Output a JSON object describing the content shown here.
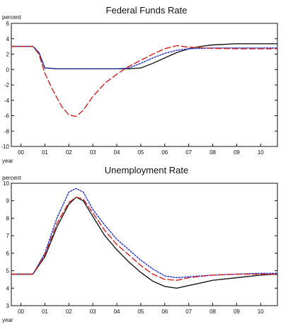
{
  "chart_data": [
    {
      "type": "line",
      "title": "Federal Funds Rate",
      "ylabel": "percent",
      "xlabel": "year",
      "ylim": [
        -10,
        6
      ],
      "yticks": [
        -10,
        -8,
        -6,
        -4,
        -2,
        0,
        2,
        4,
        6
      ],
      "xlim": [
        1999.6,
        2010.7
      ],
      "xticks": [
        2000,
        2001,
        2002,
        2003,
        2004,
        2005,
        2006,
        2007,
        2008,
        2009,
        2010
      ],
      "xticklabels": [
        "00",
        "01",
        "02",
        "03",
        "04",
        "05",
        "06",
        "07",
        "08",
        "09",
        "10"
      ],
      "grid": false,
      "series": [
        {
          "style": "solid",
          "color": "#1a1a1a",
          "x": [
            1999.6,
            2000.5,
            2000.75,
            2000.9,
            2001.0,
            2001.5,
            2002.0,
            2003.0,
            2004.0,
            2004.5,
            2005.0,
            2005.5,
            2006.0,
            2006.5,
            2007.0,
            2007.5,
            2008.0,
            2009.0,
            2010.0,
            2010.7
          ],
          "y": [
            3.0,
            3.0,
            2.2,
            1.0,
            0.2,
            0.1,
            0.1,
            0.1,
            0.1,
            0.1,
            0.2,
            0.8,
            1.5,
            2.2,
            2.7,
            3.0,
            3.2,
            3.35,
            3.35,
            3.35
          ]
        },
        {
          "style": "dotted",
          "color": "#2233cc",
          "x": [
            1999.6,
            2000.5,
            2000.75,
            2000.9,
            2001.0,
            2001.5,
            2002.0,
            2003.0,
            2004.0,
            2004.5,
            2005.0,
            2005.5,
            2006.0,
            2006.5,
            2007.0,
            2008.0,
            2009.0,
            2010.0,
            2010.7
          ],
          "y": [
            3.0,
            3.0,
            2.2,
            1.0,
            0.2,
            0.1,
            0.1,
            0.1,
            0.1,
            0.2,
            0.8,
            1.5,
            2.1,
            2.5,
            2.7,
            2.8,
            2.8,
            2.8,
            2.8
          ]
        },
        {
          "style": "dashed",
          "color": "#cc2222",
          "x": [
            1999.6,
            2000.5,
            2000.75,
            2001.0,
            2001.3,
            2001.7,
            2002.0,
            2002.3,
            2002.6,
            2003.0,
            2003.5,
            2004.0,
            2004.5,
            2005.0,
            2005.5,
            2006.0,
            2006.5,
            2007.0,
            2008.0,
            2009.0,
            2010.0,
            2010.7
          ],
          "y": [
            3.0,
            3.0,
            2.0,
            -0.5,
            -2.5,
            -4.8,
            -5.9,
            -6.1,
            -5.3,
            -3.5,
            -1.8,
            -0.6,
            0.4,
            1.2,
            2.0,
            2.7,
            3.1,
            2.9,
            2.75,
            2.7,
            2.7,
            2.7
          ]
        }
      ]
    },
    {
      "type": "line",
      "title": "Unemployment Rate",
      "ylabel": "percent",
      "xlabel": "year",
      "ylim": [
        3,
        10
      ],
      "yticks": [
        3,
        4,
        5,
        6,
        7,
        8,
        9,
        10
      ],
      "xlim": [
        1999.6,
        2010.7
      ],
      "xticks": [
        2000,
        2001,
        2002,
        2003,
        2004,
        2005,
        2006,
        2007,
        2008,
        2009,
        2010
      ],
      "xticklabels": [
        "00",
        "01",
        "02",
        "03",
        "04",
        "05",
        "06",
        "07",
        "08",
        "09",
        "10"
      ],
      "grid": false,
      "series": [
        {
          "style": "solid",
          "color": "#1a1a1a",
          "x": [
            1999.6,
            2000.5,
            2001.0,
            2001.5,
            2002.0,
            2002.3,
            2002.6,
            2003.0,
            2003.5,
            2004.0,
            2004.5,
            2005.0,
            2005.5,
            2006.0,
            2006.5,
            2007.0,
            2007.5,
            2008.0,
            2009.0,
            2010.0,
            2010.7
          ],
          "y": [
            4.8,
            4.8,
            5.8,
            7.5,
            8.8,
            9.2,
            9.0,
            8.1,
            7.0,
            6.2,
            5.5,
            4.9,
            4.4,
            4.1,
            4.0,
            4.15,
            4.3,
            4.45,
            4.6,
            4.75,
            4.8
          ]
        },
        {
          "style": "dotted",
          "color": "#2233cc",
          "x": [
            1999.6,
            2000.5,
            2001.0,
            2001.5,
            2002.0,
            2002.3,
            2002.6,
            2003.0,
            2003.5,
            2004.0,
            2004.5,
            2005.0,
            2005.5,
            2006.0,
            2006.5,
            2007.0,
            2008.0,
            2009.0,
            2010.0,
            2010.7
          ],
          "y": [
            4.8,
            4.8,
            6.0,
            8.0,
            9.5,
            9.7,
            9.5,
            8.5,
            7.6,
            6.8,
            6.2,
            5.6,
            5.1,
            4.7,
            4.6,
            4.65,
            4.75,
            4.8,
            4.85,
            4.85
          ]
        },
        {
          "style": "dashed",
          "color": "#cc2222",
          "x": [
            1999.6,
            2000.5,
            2001.0,
            2001.5,
            2002.0,
            2002.3,
            2002.6,
            2003.0,
            2003.5,
            2004.0,
            2004.5,
            2005.0,
            2005.5,
            2006.0,
            2006.5,
            2007.0,
            2008.0,
            2009.0,
            2010.0,
            2010.7
          ],
          "y": [
            4.8,
            4.8,
            5.9,
            7.7,
            8.9,
            9.2,
            9.1,
            8.3,
            7.3,
            6.5,
            5.9,
            5.3,
            4.8,
            4.5,
            4.45,
            4.6,
            4.75,
            4.8,
            4.8,
            4.8
          ]
        }
      ]
    }
  ]
}
